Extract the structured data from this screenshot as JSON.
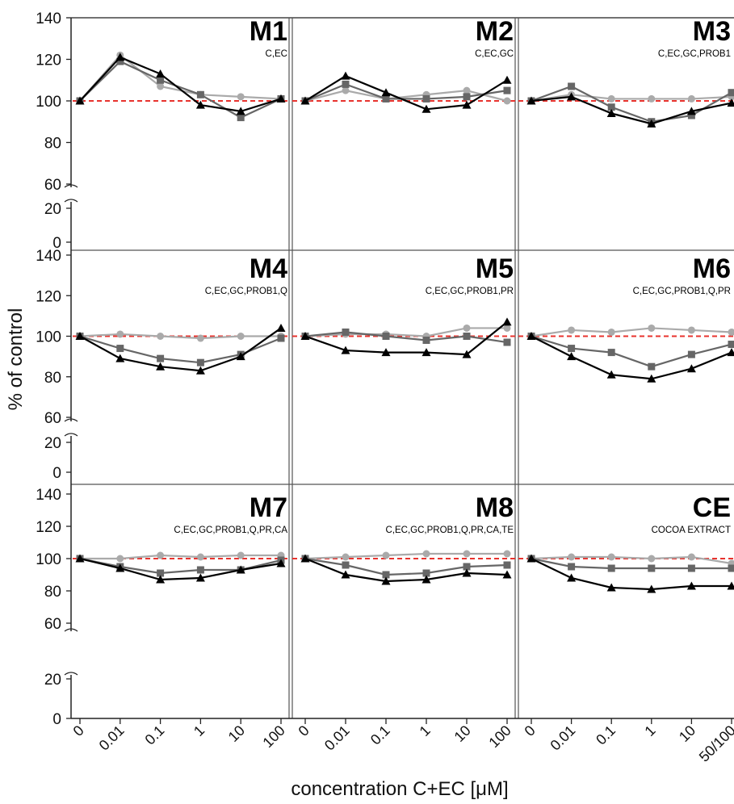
{
  "chart_data": {
    "type": "line",
    "xlabel": "concentration C+EC [μM]",
    "ylabel": "% of control",
    "y_ticks_upper": [
      60,
      80,
      100,
      120,
      140
    ],
    "y_ticks_lower": [
      0,
      20
    ],
    "ylim_upper": [
      60,
      140
    ],
    "ylim_lower": [
      0,
      20
    ],
    "reference_line": {
      "y": 100,
      "style": "dashed",
      "color": "#e8332e"
    },
    "series_colors": [
      "#aaaaaa",
      "#666666",
      "#000000"
    ],
    "series_markers": [
      "circle",
      "square",
      "triangle"
    ],
    "panels": [
      {
        "title": "M1",
        "subtitle": "C,EC",
        "x": [
          "0",
          "0.01",
          "0.1",
          "1",
          "10",
          "100"
        ],
        "series": [
          {
            "values": [
              100,
              122,
              107,
              103,
              102,
              101
            ]
          },
          {
            "values": [
              100,
              119,
              110,
              103,
              92,
              101
            ]
          },
          {
            "values": [
              100,
              121,
              113,
              98,
              95,
              101
            ]
          }
        ]
      },
      {
        "title": "M2",
        "subtitle": "C,EC,GC",
        "x": [
          "0",
          "0.01",
          "0.1",
          "1",
          "10",
          "100"
        ],
        "series": [
          {
            "values": [
              100,
              105,
              101,
              103,
              105,
              100
            ]
          },
          {
            "values": [
              100,
              108,
              101,
              101,
              102,
              105
            ]
          },
          {
            "values": [
              100,
              112,
              104,
              96,
              98,
              110
            ]
          }
        ]
      },
      {
        "title": "M3",
        "subtitle": "C,EC,GC,PROB1",
        "x": [
          "0",
          "0.01",
          "0.1",
          "1",
          "10",
          "50/100"
        ],
        "series": [
          {
            "values": [
              100,
              103,
              101,
              101,
              101,
              102
            ]
          },
          {
            "values": [
              100,
              107,
              97,
              90,
              93,
              104
            ]
          },
          {
            "values": [
              100,
              102,
              94,
              89,
              95,
              99
            ]
          }
        ]
      },
      {
        "title": "M4",
        "subtitle": "C,EC,GC,PROB1,Q",
        "x": [
          "0",
          "0.01",
          "0.1",
          "1",
          "10",
          "100"
        ],
        "series": [
          {
            "values": [
              100,
              101,
              100,
              99,
              100,
              100
            ]
          },
          {
            "values": [
              100,
              94,
              89,
              87,
              91,
              99
            ]
          },
          {
            "values": [
              100,
              89,
              85,
              83,
              90,
              104
            ]
          }
        ]
      },
      {
        "title": "M5",
        "subtitle": "C,EC,GC,PROB1,PR",
        "x": [
          "0",
          "0.01",
          "0.1",
          "1",
          "10",
          "100"
        ],
        "series": [
          {
            "values": [
              100,
              101,
              101,
              100,
              104,
              104
            ]
          },
          {
            "values": [
              100,
              102,
              100,
              98,
              100,
              97
            ]
          },
          {
            "values": [
              100,
              93,
              92,
              92,
              91,
              107
            ]
          }
        ]
      },
      {
        "title": "M6",
        "subtitle": "C,EC,GC,PROB1,Q,PR",
        "x": [
          "0",
          "0.01",
          "0.1",
          "1",
          "10",
          "50/100"
        ],
        "series": [
          {
            "values": [
              100,
              103,
              102,
              104,
              103,
              102
            ]
          },
          {
            "values": [
              100,
              94,
              92,
              85,
              91,
              96
            ]
          },
          {
            "values": [
              100,
              90,
              81,
              79,
              84,
              92
            ]
          }
        ]
      },
      {
        "title": "M7",
        "subtitle": "C,EC,GC,PROB1,Q,PR,CA",
        "x": [
          "0",
          "0.01",
          "0.1",
          "1",
          "10",
          "100"
        ],
        "series": [
          {
            "values": [
              100,
              100,
              102,
              101,
              102,
              102
            ]
          },
          {
            "values": [
              100,
              95,
              91,
              93,
              93,
              99
            ]
          },
          {
            "values": [
              100,
              94,
              87,
              88,
              93,
              97
            ]
          }
        ]
      },
      {
        "title": "M8",
        "subtitle": "C,EC,GC,PROB1,Q,PR,CA,TE",
        "x": [
          "0",
          "0.01",
          "0.1",
          "1",
          "10",
          "100"
        ],
        "series": [
          {
            "values": [
              100,
              101,
              102,
              103,
              103,
              103
            ]
          },
          {
            "values": [
              100,
              96,
              90,
              91,
              95,
              96
            ]
          },
          {
            "values": [
              100,
              90,
              86,
              87,
              91,
              90
            ]
          }
        ]
      },
      {
        "title": "CE",
        "subtitle": "COCOA EXTRACT",
        "x": [
          "0",
          "0.01",
          "0.1",
          "1",
          "10",
          "50/100"
        ],
        "series": [
          {
            "values": [
              100,
              101,
              101,
              100,
              101,
              97
            ]
          },
          {
            "values": [
              100,
              95,
              94,
              94,
              94,
              94
            ]
          },
          {
            "values": [
              100,
              88,
              82,
              81,
              83,
              83
            ]
          }
        ]
      }
    ]
  }
}
